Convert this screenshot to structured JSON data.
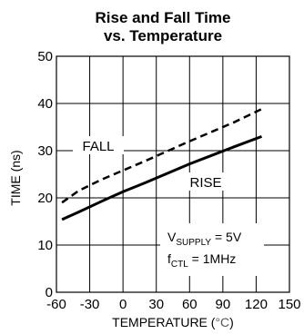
{
  "chart_data": {
    "type": "line",
    "title_line1": "Rise and Fall Time",
    "title_line2": "vs. Temperature",
    "xlabel_main": "TEMPERATURE (",
    "xlabel_unit": "°C",
    "xlabel_end": ")",
    "ylabel": "TIME (ns)",
    "xlim": [
      -60,
      150
    ],
    "ylim": [
      0,
      50
    ],
    "x_ticks": [
      -60,
      -30,
      0,
      30,
      60,
      90,
      120,
      150
    ],
    "y_ticks": [
      0,
      10,
      20,
      30,
      40,
      50
    ],
    "grid": true,
    "series": [
      {
        "name": "FALL",
        "style": "dashed",
        "x": [
          -55,
          -40,
          -20,
          0,
          20,
          40,
          60,
          80,
          100,
          125
        ],
        "y": [
          19,
          21.5,
          23.8,
          25.8,
          27.8,
          29.9,
          32,
          34,
          36,
          38.8
        ]
      },
      {
        "name": "RISE",
        "style": "solid",
        "x": [
          -55,
          -40,
          -20,
          0,
          20,
          40,
          60,
          80,
          100,
          125
        ],
        "y": [
          15.4,
          17,
          19.2,
          21.3,
          23.2,
          25.2,
          27.2,
          29,
          30.8,
          33
        ]
      }
    ],
    "annotation": {
      "line1_main": "V",
      "line1_sub": "SUPPLY",
      "line1_rest": " = 5V",
      "line2_main": "f",
      "line2_sub": "CTL",
      "line2_rest": " = 1MHz"
    }
  }
}
